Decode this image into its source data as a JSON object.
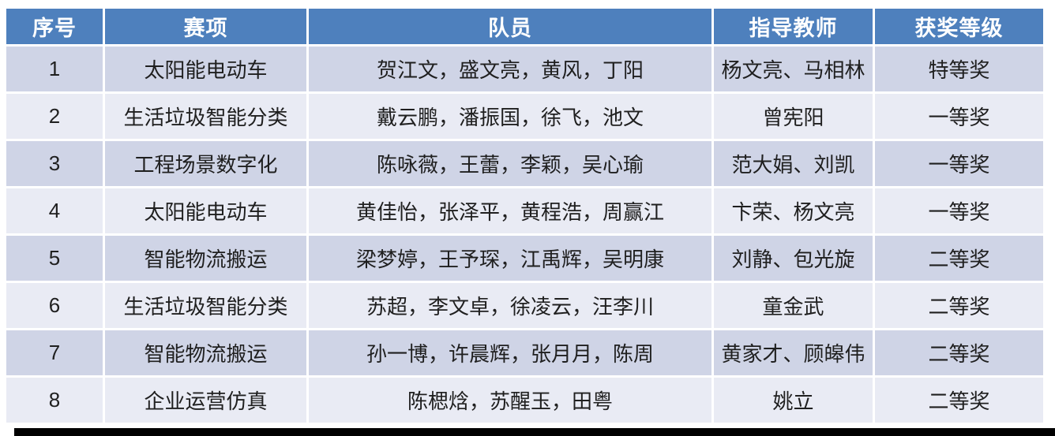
{
  "table": {
    "columns": [
      {
        "key": "index",
        "label": "序号"
      },
      {
        "key": "event",
        "label": "赛项"
      },
      {
        "key": "members",
        "label": "队员"
      },
      {
        "key": "teachers",
        "label": "指导教师"
      },
      {
        "key": "award",
        "label": "获奖等级"
      }
    ],
    "rows": [
      [
        "1",
        "太阳能电动车",
        "贺江文，盛文亮，黄风，丁阳",
        "杨文亮、马相林",
        "特等奖"
      ],
      [
        "2",
        "生活垃圾智能分类",
        "戴云鹏，潘振国，徐飞，池文",
        "曾宪阳",
        "一等奖"
      ],
      [
        "3",
        "工程场景数字化",
        "陈咏薇，王蕾，李颖，吴心瑜",
        "范大娟、刘凯",
        "一等奖"
      ],
      [
        "4",
        "太阳能电动车",
        "黄佳怡，张泽平，黄程浩，周赢江",
        "卞荣、杨文亮",
        "一等奖"
      ],
      [
        "5",
        "智能物流搬运",
        "梁梦婷，王予琛，江禹辉，吴明康",
        "刘静、包光旋",
        "二等奖"
      ],
      [
        "6",
        "生活垃圾智能分类",
        "苏超，李文卓，徐凌云，汪李川",
        "童金武",
        "二等奖"
      ],
      [
        "7",
        "智能物流搬运",
        "孙一博，许晨辉，张月月，陈周",
        "黄家才、顾皞伟",
        "二等奖"
      ],
      [
        "8",
        "企业运营仿真",
        "陈楒焓，苏醒玉，田粤",
        "姚立",
        "二等奖"
      ]
    ]
  },
  "colors": {
    "header_bg": "#4e80bd",
    "header_text": "#ffffff",
    "row_band_dark": "#cfd4e6",
    "row_band_light": "#e9ebf4",
    "body_text": "#1f1f1f",
    "grid": "#ffffff",
    "bottom_bar": "#000000"
  }
}
